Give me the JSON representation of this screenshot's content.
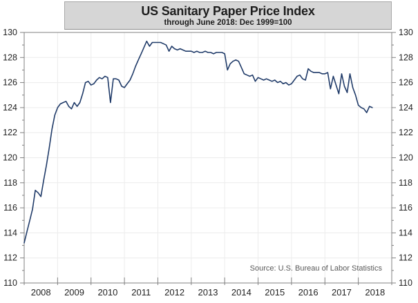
{
  "chart_data": {
    "type": "line",
    "title": "US Sanitary Paper Price Index",
    "subtitle": "through June 2018: Dec 1999=100",
    "source": "Source: U.S. Bureau of Labor Statistics",
    "frequency": "monthly",
    "x_start": "2008-01",
    "x_end": "2018-06",
    "categories": [
      "2008",
      "2009",
      "2010",
      "2011",
      "2012",
      "2013",
      "2014",
      "2015",
      "2016",
      "2017",
      "2018"
    ],
    "yticks": [
      110,
      112,
      114,
      116,
      118,
      120,
      122,
      124,
      126,
      128,
      130
    ],
    "ylim": [
      110,
      130
    ],
    "grid": true,
    "legend_position": "none",
    "line_color": "#1f3a68",
    "axis_color": "#808080",
    "grid_color": "#ececec",
    "tick_label_color": "#1f1f1f",
    "title_box_fill": "#d6d6d6",
    "series": [
      {
        "name": "US Sanitary Paper Price Index (Dec 1999=100)",
        "values": [
          113.2,
          114.1,
          115.0,
          115.9,
          117.4,
          117.2,
          116.9,
          118.2,
          119.4,
          120.8,
          122.3,
          123.4,
          124.0,
          124.3,
          124.4,
          124.5,
          124.1,
          123.9,
          124.4,
          124.1,
          124.4,
          125.1,
          126.0,
          126.1,
          125.8,
          125.9,
          126.2,
          126.4,
          126.3,
          126.5,
          126.4,
          124.4,
          126.3,
          126.3,
          126.2,
          125.7,
          125.6,
          125.9,
          126.2,
          126.7,
          127.3,
          127.8,
          128.3,
          128.8,
          129.3,
          128.9,
          129.2,
          129.2,
          129.2,
          129.2,
          129.1,
          129.0,
          128.5,
          128.9,
          128.7,
          128.6,
          128.7,
          128.6,
          128.5,
          128.5,
          128.5,
          128.4,
          128.5,
          128.4,
          128.4,
          128.5,
          128.4,
          128.4,
          128.3,
          128.4,
          128.4,
          128.4,
          128.3,
          127.0,
          127.5,
          127.7,
          127.8,
          127.7,
          127.2,
          126.7,
          126.6,
          126.5,
          126.6,
          126.1,
          126.4,
          126.3,
          126.2,
          126.3,
          126.2,
          126.1,
          126.2,
          126.0,
          126.1,
          125.9,
          126.0,
          125.8,
          125.9,
          126.2,
          126.5,
          126.6,
          126.3,
          126.2,
          127.1,
          126.9,
          126.8,
          126.8,
          126.8,
          126.7,
          126.7,
          126.8,
          125.5,
          126.5,
          125.8,
          125.1,
          126.7,
          125.7,
          125.2,
          126.7,
          125.6,
          125.0,
          124.2,
          124.0,
          123.9,
          123.6,
          124.1,
          124.0
        ]
      }
    ]
  }
}
